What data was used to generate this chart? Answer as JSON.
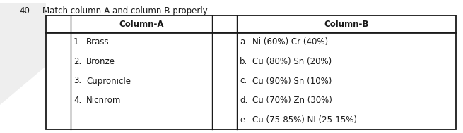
{
  "question_number": "40.",
  "question_text": "Match column-A and column-B properly.",
  "col_a_header": "Column-A",
  "col_b_header": "Column-B",
  "col_a_nums": [
    "1.",
    "2.",
    "3.",
    "4.",
    ""
  ],
  "col_a_values": [
    "Brass",
    "Bronze",
    "Cupronicle",
    "Nicnrom",
    ""
  ],
  "col_b_nums": [
    "a.",
    "b.",
    "c.",
    "d.",
    "e."
  ],
  "col_b_values": [
    "Ni (60%) Cr (40%)",
    "Cu (80%) Sn (20%)",
    "Cu (90%) Sn (10%)",
    "Cu (70%) Zn (30%)",
    "Cu (75-85%) NI (25-15%)"
  ],
  "bg_color": "#ffffff",
  "text_color": "#1a1a1a",
  "border_color": "#1a1a1a",
  "font_size": 8.5,
  "header_font_size": 8.5,
  "q_font_size": 8.5,
  "watermark_color": "#c8c8c8"
}
